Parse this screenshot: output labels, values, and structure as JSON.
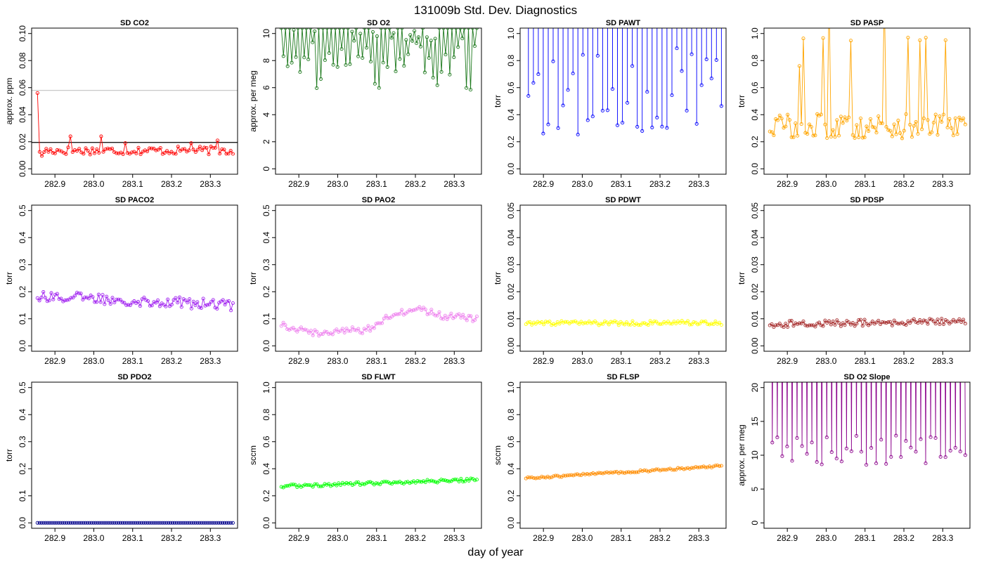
{
  "figure": {
    "title": "131009b   Std. Dev. Diagnostics",
    "xlabel": "day of year"
  },
  "chart_data": [
    {
      "type": "line",
      "title": "SD CO2",
      "xlabel": "",
      "ylabel": "approx. ppm",
      "color": "#ff0000",
      "xlim": [
        282.84,
        283.37
      ],
      "ylim": [
        0,
        0.1
      ],
      "xticks": [
        "282.9",
        "283.0",
        "283.1",
        "283.2",
        "283.3"
      ],
      "yticks": [
        "0.00",
        "0.02",
        "0.04",
        "0.06",
        "0.08",
        "0.10"
      ],
      "hlines": [
        {
          "y": 0.0195,
          "color": "#000000"
        },
        {
          "y": 0.058,
          "color": "#c8c8c8"
        }
      ],
      "series": [
        {
          "pattern": "co2",
          "base": 0.0135,
          "amp": 0.003,
          "start": 0.056,
          "spikes": [
            [
              0.056,
              0.024
            ],
            [
              0.059,
              0.021
            ],
            [
              0.075,
              0.023
            ],
            [
              0.17,
              0.024
            ],
            [
              0.25,
              0.018
            ],
            [
              0.39,
              0.019
            ],
            [
              0.45,
              0.021
            ]
          ],
          "n": 90
        }
      ],
      "highlight": [
        [
          0,
          0.056
        ],
        [
          0.17,
          0.024
        ],
        [
          0.45,
          0.021
        ]
      ]
    },
    {
      "type": "line",
      "title": "SD O2",
      "xlabel": "",
      "ylabel": "approx. per meg",
      "color": "#1e7a1e",
      "xlim": [
        282.84,
        283.37
      ],
      "ylim": [
        0,
        10
      ],
      "xticks": [
        "282.9",
        "283.0",
        "283.1",
        "283.2",
        "283.3"
      ],
      "yticks": [
        "0",
        "2",
        "4",
        "6",
        "8",
        "10"
      ],
      "series": [
        {
          "pattern": "jagged-high",
          "low": 5.8,
          "high": 10.4,
          "n": 95
        }
      ]
    },
    {
      "type": "line",
      "title": "SD PAWT",
      "xlabel": "",
      "ylabel": "torr",
      "color": "#0000ff",
      "xlim": [
        282.84,
        283.37
      ],
      "ylim": [
        0,
        1
      ],
      "xticks": [
        "282.9",
        "283.0",
        "283.1",
        "283.2",
        "283.3"
      ],
      "yticks": [
        "0.0",
        "0.2",
        "0.4",
        "0.6",
        "0.8",
        "1.0"
      ],
      "series": [
        {
          "pattern": "spiky",
          "low": 0.25,
          "high": 0.9,
          "n": 80
        }
      ]
    },
    {
      "type": "line",
      "title": "SD PASP",
      "xlabel": "",
      "ylabel": "torr",
      "color": "#ffa500",
      "xlim": [
        282.84,
        283.37
      ],
      "ylim": [
        0,
        1
      ],
      "xticks": [
        "282.9",
        "283.0",
        "283.1",
        "283.2",
        "283.3"
      ],
      "yticks": [
        "0.0",
        "0.2",
        "0.4",
        "0.6",
        "0.8",
        "1.0"
      ],
      "series": [
        {
          "pattern": "noisy-peaks",
          "base": 0.32,
          "amp": 0.1,
          "n": 100
        }
      ]
    },
    {
      "type": "line",
      "title": "SD PACO2",
      "xlabel": "",
      "ylabel": "torr",
      "color": "#a020f0",
      "xlim": [
        282.84,
        283.37
      ],
      "ylim": [
        0,
        0.5
      ],
      "xticks": [
        "282.9",
        "283.0",
        "283.1",
        "283.2",
        "283.3"
      ],
      "yticks": [
        "0.0",
        "0.1",
        "0.2",
        "0.3",
        "0.4",
        "0.5"
      ],
      "series": [
        {
          "pattern": "trend",
          "start": 0.185,
          "end": 0.15,
          "amp": 0.02,
          "n": 100
        }
      ]
    },
    {
      "type": "line",
      "title": "SD PAO2",
      "xlabel": "",
      "ylabel": "torr",
      "color": "#ee82ee",
      "xlim": [
        282.84,
        283.37
      ],
      "ylim": [
        0,
        0.5
      ],
      "xticks": [
        "282.9",
        "283.0",
        "283.1",
        "283.2",
        "283.3"
      ],
      "yticks": [
        "0.0",
        "0.1",
        "0.2",
        "0.3",
        "0.4",
        "0.5"
      ],
      "series": [
        {
          "pattern": "wave",
          "points": [
            [
              282.85,
              0.08
            ],
            [
              282.95,
              0.045
            ],
            [
              283.02,
              0.06
            ],
            [
              283.07,
              0.055
            ],
            [
              283.12,
              0.1
            ],
            [
              283.2,
              0.14
            ],
            [
              283.27,
              0.11
            ],
            [
              283.36,
              0.1
            ]
          ],
          "amp": 0.012,
          "n": 100
        }
      ]
    },
    {
      "type": "line",
      "title": "SD PDWT",
      "xlabel": "",
      "ylabel": "torr",
      "color": "#ffff00",
      "xlim": [
        282.84,
        283.37
      ],
      "ylim": [
        0,
        0.05
      ],
      "xticks": [
        "282.9",
        "283.0",
        "283.1",
        "283.2",
        "283.3"
      ],
      "yticks": [
        "0.00",
        "0.01",
        "0.02",
        "0.03",
        "0.04",
        "0.05"
      ],
      "series": [
        {
          "pattern": "trend",
          "start": 0.0083,
          "end": 0.0085,
          "amp": 0.0008,
          "n": 100
        }
      ]
    },
    {
      "type": "line",
      "title": "SD PDSP",
      "xlabel": "",
      "ylabel": "torr",
      "color": "#a52a2a",
      "xlim": [
        282.84,
        283.37
      ],
      "ylim": [
        0,
        0.05
      ],
      "xticks": [
        "282.9",
        "283.0",
        "283.1",
        "283.2",
        "283.3"
      ],
      "yticks": [
        "0.00",
        "0.01",
        "0.02",
        "0.03",
        "0.04",
        "0.05"
      ],
      "series": [
        {
          "pattern": "trend",
          "start": 0.008,
          "end": 0.009,
          "amp": 0.0012,
          "n": 100
        }
      ]
    },
    {
      "type": "line",
      "title": "SD PDO2",
      "xlabel": "",
      "ylabel": "torr",
      "color": "#00008b",
      "xlim": [
        282.84,
        283.37
      ],
      "ylim": [
        0,
        0.5
      ],
      "xticks": [
        "282.9",
        "283.0",
        "283.1",
        "283.2",
        "283.3"
      ],
      "yticks": [
        "0.0",
        "0.1",
        "0.2",
        "0.3",
        "0.4",
        "0.5"
      ],
      "series": [
        {
          "pattern": "trend",
          "start": 0.0,
          "end": 0.0,
          "amp": 0.0,
          "n": 95
        }
      ]
    },
    {
      "type": "line",
      "title": "SD FLWT",
      "xlabel": "",
      "ylabel": "sccm",
      "color": "#00ff00",
      "xlim": [
        282.84,
        283.37
      ],
      "ylim": [
        0,
        1
      ],
      "xticks": [
        "282.9",
        "283.0",
        "283.1",
        "283.2",
        "283.3"
      ],
      "yticks": [
        "0.0",
        "0.2",
        "0.4",
        "0.6",
        "0.8",
        "1.0"
      ],
      "series": [
        {
          "pattern": "trend",
          "start": 0.27,
          "end": 0.32,
          "amp": 0.012,
          "n": 100
        }
      ]
    },
    {
      "type": "line",
      "title": "SD FLSP",
      "xlabel": "",
      "ylabel": "sccm",
      "color": "#ff8c00",
      "xlim": [
        282.84,
        283.37
      ],
      "ylim": [
        0,
        1
      ],
      "xticks": [
        "282.9",
        "283.0",
        "283.1",
        "283.2",
        "283.3"
      ],
      "yticks": [
        "0.0",
        "0.2",
        "0.4",
        "0.6",
        "0.8",
        "1.0"
      ],
      "series": [
        {
          "pattern": "trend",
          "start": 0.33,
          "end": 0.42,
          "amp": 0.007,
          "n": 100
        }
      ]
    },
    {
      "type": "line",
      "title": "SD O2 Slope",
      "xlabel": "",
      "ylabel": "approx. per meg",
      "color": "#8b008b",
      "xlim": [
        282.84,
        283.37
      ],
      "ylim": [
        0,
        20
      ],
      "xticks": [
        "282.9",
        "283.0",
        "283.1",
        "283.2",
        "283.3"
      ],
      "yticks": [
        "0",
        "5",
        "10",
        "15",
        "20"
      ],
      "series": [
        {
          "pattern": "spiky",
          "low": 8.5,
          "high": 13,
          "n": 80
        }
      ]
    }
  ]
}
